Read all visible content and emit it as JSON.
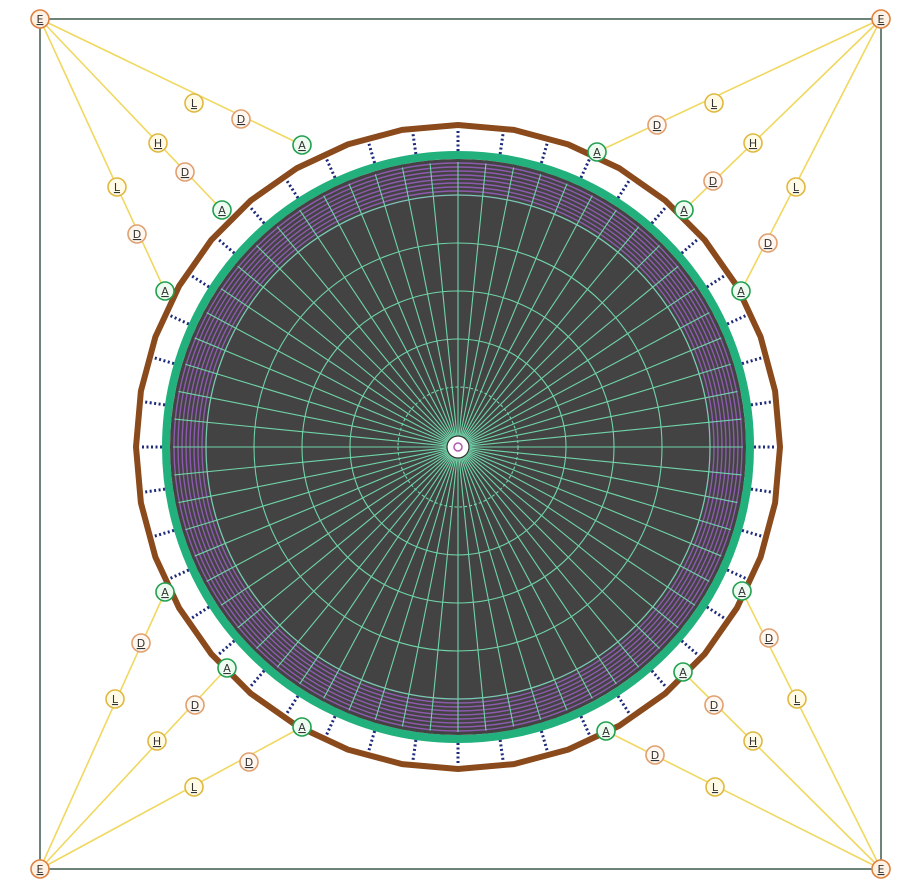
{
  "diagram": {
    "node_letters": {
      "corner": "E",
      "anchor": "A",
      "damper": "D",
      "link": "L",
      "hub": "H"
    },
    "colors": {
      "background": "#ffffff",
      "frame": "#3e5a4a",
      "guy_line": "#f0d860",
      "outer_ring": "#8a4a1c",
      "bumper_ring": "#22b07c",
      "purple_band": "#8e5ab0",
      "deck_fill": "#434343",
      "spokes": "#6fd4a8",
      "spring_links": "#1e2a7a",
      "corner_node_stroke": "#e08040",
      "corner_node_fill": "#fff2e4",
      "anchor_node_stroke": "#22a050",
      "anchor_node_fill": "#eefbf1",
      "damper_node_stroke": "#e0a070",
      "damper_node_fill": "#fff7f0",
      "link_node_stroke": "#e0b840",
      "link_node_fill": "#fffbe6",
      "hub_node_stroke": "#e0b840",
      "hub_node_fill": "#fffbe6",
      "center_pin": "#b05ab0"
    },
    "corners": [
      {
        "id": "top-left",
        "letter": "E"
      },
      {
        "id": "top-right",
        "letter": "E"
      },
      {
        "id": "bottom-left",
        "letter": "E"
      },
      {
        "id": "bottom-right",
        "letter": "E"
      }
    ],
    "guy_labels": [
      {
        "id": "tl-l1",
        "letter": "L"
      },
      {
        "id": "tl-d1",
        "letter": "D"
      },
      {
        "id": "tl-h",
        "letter": "H"
      },
      {
        "id": "tl-d2",
        "letter": "D"
      },
      {
        "id": "tl-l2",
        "letter": "L"
      },
      {
        "id": "tl-d3",
        "letter": "D"
      },
      {
        "id": "tr-l1",
        "letter": "L"
      },
      {
        "id": "tr-d1",
        "letter": "D"
      },
      {
        "id": "tr-h",
        "letter": "H"
      },
      {
        "id": "tr-d2",
        "letter": "D"
      },
      {
        "id": "tr-l2",
        "letter": "L"
      },
      {
        "id": "tr-d3",
        "letter": "D"
      },
      {
        "id": "bl-d1",
        "letter": "D"
      },
      {
        "id": "bl-l1",
        "letter": "L"
      },
      {
        "id": "bl-d2",
        "letter": "D"
      },
      {
        "id": "bl-h",
        "letter": "H"
      },
      {
        "id": "bl-d3",
        "letter": "D"
      },
      {
        "id": "bl-l2",
        "letter": "L"
      },
      {
        "id": "br-d1",
        "letter": "D"
      },
      {
        "id": "br-l1",
        "letter": "L"
      },
      {
        "id": "br-d2",
        "letter": "D"
      },
      {
        "id": "br-h",
        "letter": "H"
      },
      {
        "id": "br-d3",
        "letter": "D"
      },
      {
        "id": "br-l2",
        "letter": "L"
      }
    ],
    "anchors": [
      {
        "id": "a1",
        "letter": "A"
      },
      {
        "id": "a2",
        "letter": "A"
      },
      {
        "id": "a3",
        "letter": "A"
      },
      {
        "id": "a4",
        "letter": "A"
      },
      {
        "id": "a5",
        "letter": "A"
      },
      {
        "id": "a6",
        "letter": "A"
      },
      {
        "id": "a7",
        "letter": "A"
      },
      {
        "id": "a8",
        "letter": "A"
      },
      {
        "id": "a9",
        "letter": "A"
      },
      {
        "id": "a10",
        "letter": "A"
      },
      {
        "id": "a11",
        "letter": "A"
      },
      {
        "id": "a12",
        "letter": "A"
      }
    ]
  }
}
